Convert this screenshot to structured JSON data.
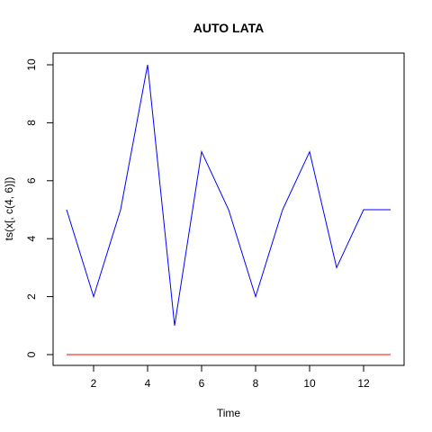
{
  "chart_data": {
    "type": "line",
    "title": "AUTO LATA",
    "xlabel": "Time",
    "ylabel": "ts(x[, c(4, 6)])",
    "x": [
      1,
      2,
      3,
      4,
      5,
      6,
      7,
      8,
      9,
      10,
      11,
      12,
      13
    ],
    "xlim": [
      1,
      13
    ],
    "ylim": [
      0,
      10
    ],
    "xticks": [
      2,
      4,
      6,
      8,
      10,
      12
    ],
    "yticks": [
      0,
      2,
      4,
      6,
      8,
      10
    ],
    "grid": false,
    "series": [
      {
        "color": "#0000ff",
        "values": [
          5,
          2,
          5,
          10,
          1,
          7,
          5,
          2,
          5,
          7,
          3,
          5,
          5
        ]
      },
      {
        "color": "#ff0000",
        "values": [
          0,
          0,
          0,
          0,
          0,
          0,
          0,
          0,
          0,
          0,
          0,
          0,
          0
        ]
      }
    ]
  }
}
